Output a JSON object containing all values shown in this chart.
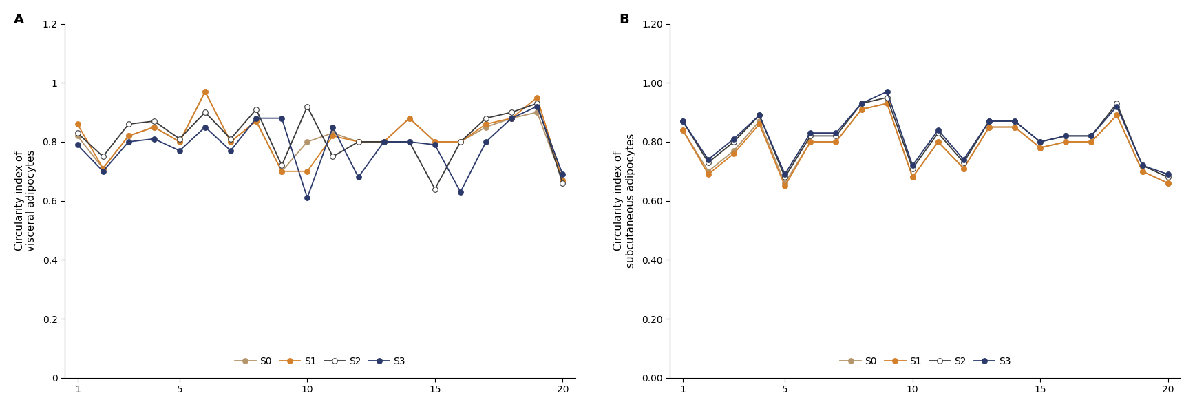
{
  "x": [
    1,
    2,
    3,
    4,
    5,
    6,
    7,
    8,
    9,
    10,
    11,
    12,
    13,
    14,
    15,
    16,
    17,
    18,
    19,
    20
  ],
  "panel_A": {
    "title_label": "A",
    "ylabel": "Circularity index of\nvisceral adipocytes",
    "ylim": [
      0,
      1.2
    ],
    "yticks": [
      0,
      0.2,
      0.4,
      0.6,
      0.8,
      1.0,
      1.2
    ],
    "xlim": [
      0.5,
      20.5
    ],
    "xticks": [
      1,
      5,
      10,
      15,
      20
    ],
    "S0": [
      0.82,
      0.71,
      0.82,
      0.85,
      0.8,
      0.97,
      0.8,
      0.87,
      0.7,
      0.8,
      0.83,
      0.8,
      0.8,
      0.88,
      0.8,
      0.8,
      0.85,
      0.88,
      0.9,
      0.67
    ],
    "S1": [
      0.86,
      0.71,
      0.82,
      0.85,
      0.8,
      0.97,
      0.8,
      0.87,
      0.7,
      0.7,
      0.82,
      0.8,
      0.8,
      0.88,
      0.8,
      0.8,
      0.86,
      0.88,
      0.95,
      0.67
    ],
    "S2": [
      0.83,
      0.75,
      0.86,
      0.87,
      0.81,
      0.9,
      0.81,
      0.91,
      0.72,
      0.92,
      0.75,
      0.8,
      0.8,
      0.8,
      0.64,
      0.8,
      0.88,
      0.9,
      0.93,
      0.66
    ],
    "S3": [
      0.79,
      0.7,
      0.8,
      0.81,
      0.77,
      0.85,
      0.77,
      0.88,
      0.88,
      0.61,
      0.85,
      0.68,
      0.8,
      0.8,
      0.79,
      0.63,
      0.8,
      0.88,
      0.92,
      0.69
    ]
  },
  "panel_B": {
    "title_label": "B",
    "ylabel": "Circularity index of\nsubcutaneous adipocytes",
    "ylim": [
      0.0,
      1.2
    ],
    "yticks": [
      0.0,
      0.2,
      0.4,
      0.6,
      0.8,
      1.0,
      1.2
    ],
    "xlim": [
      0.5,
      20.5
    ],
    "xticks": [
      1,
      5,
      10,
      15,
      20
    ],
    "S0": [
      0.84,
      0.7,
      0.77,
      0.87,
      0.66,
      0.8,
      0.8,
      0.91,
      0.93,
      0.68,
      0.8,
      0.71,
      0.85,
      0.85,
      0.78,
      0.8,
      0.8,
      0.89,
      0.7,
      0.66
    ],
    "S1": [
      0.84,
      0.69,
      0.76,
      0.86,
      0.65,
      0.8,
      0.8,
      0.91,
      0.93,
      0.68,
      0.8,
      0.71,
      0.85,
      0.85,
      0.78,
      0.8,
      0.8,
      0.89,
      0.7,
      0.66
    ],
    "S2": [
      0.87,
      0.73,
      0.8,
      0.89,
      0.68,
      0.82,
      0.82,
      0.93,
      0.95,
      0.71,
      0.83,
      0.73,
      0.87,
      0.87,
      0.8,
      0.82,
      0.82,
      0.93,
      0.72,
      0.68
    ],
    "S3": [
      0.87,
      0.74,
      0.81,
      0.89,
      0.69,
      0.83,
      0.83,
      0.93,
      0.97,
      0.72,
      0.84,
      0.74,
      0.87,
      0.87,
      0.8,
      0.82,
      0.82,
      0.92,
      0.72,
      0.69
    ]
  },
  "color_S0": "#b5956b",
  "color_S1": "#d4802a",
  "color_S2": "#3a3a3a",
  "color_S3": "#2b3a6b",
  "bg_color": "#ffffff"
}
